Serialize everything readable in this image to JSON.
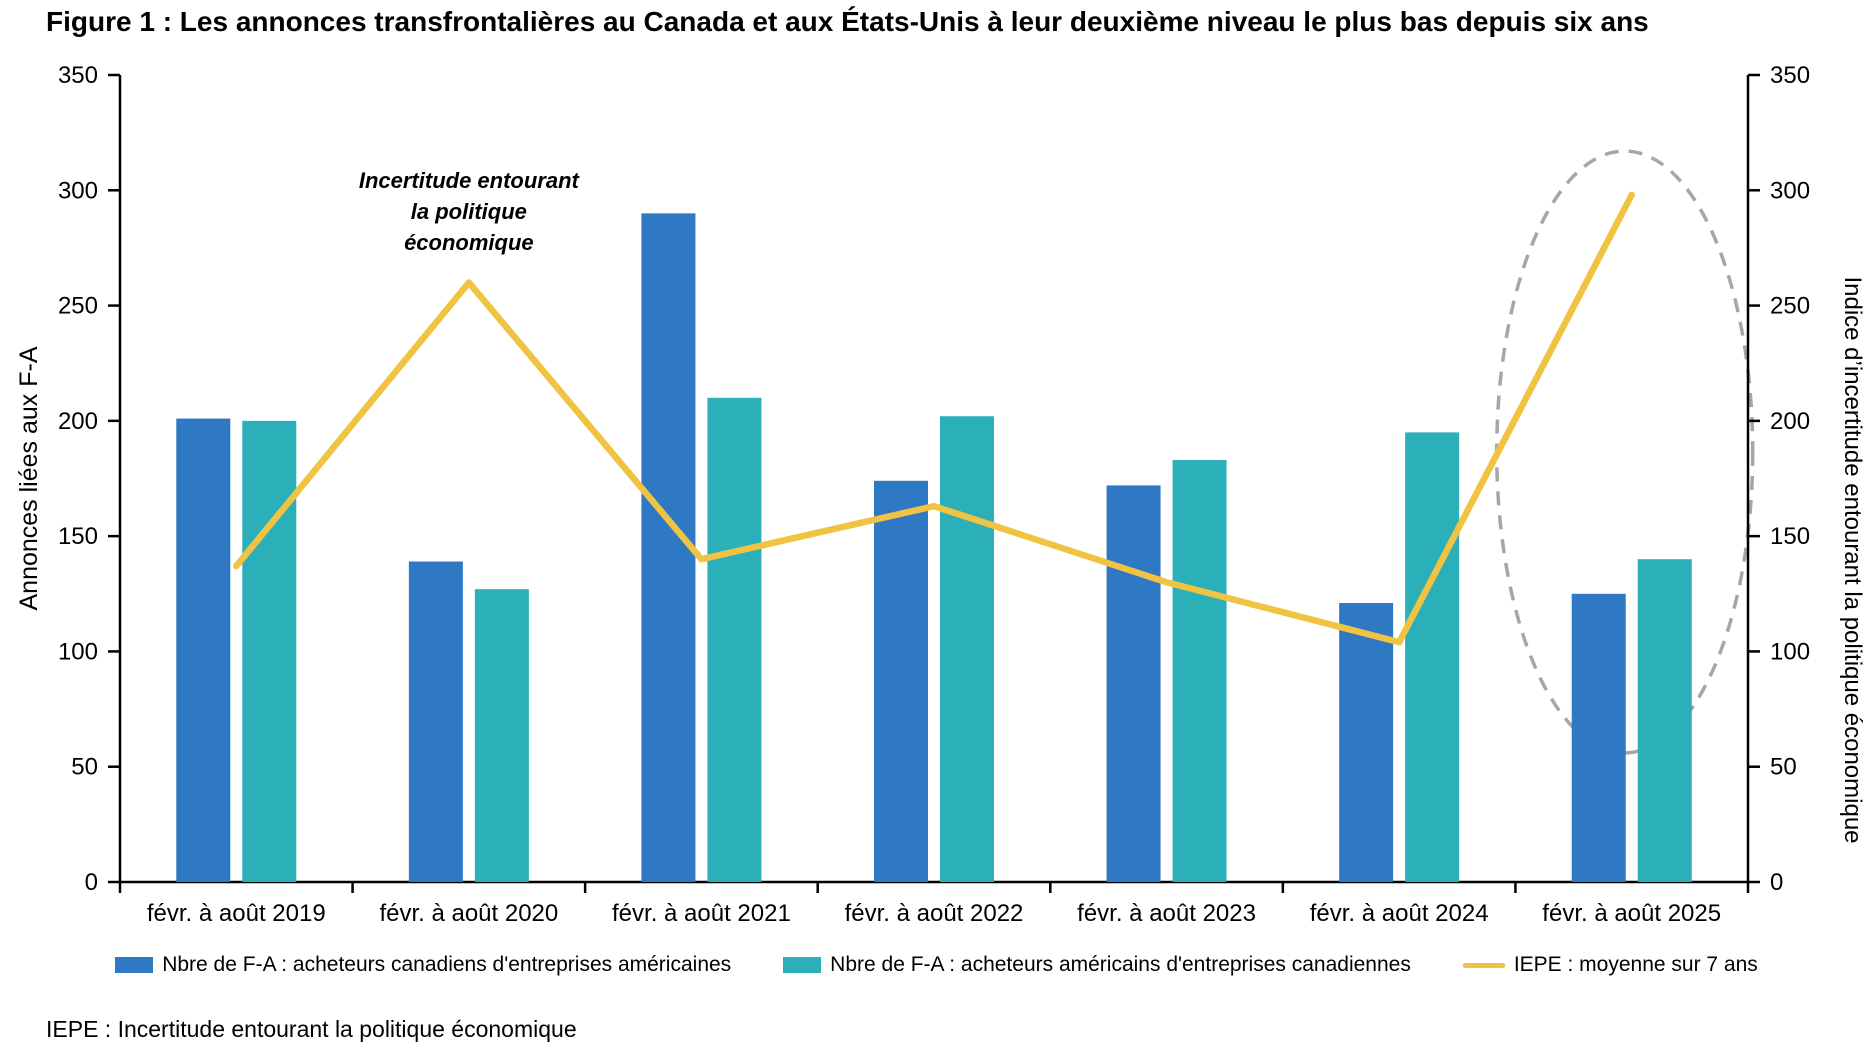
{
  "figure": {
    "title": "Figure 1 : Les annonces transfrontalières au Canada et aux États-Unis à leur deuxième niveau le plus bas depuis six ans",
    "footnote": "IEPE : Incertitude entourant la politique économique"
  },
  "chart_data": {
    "type": "bar",
    "subtype": "grouped-bars-with-line-overlay",
    "categories": [
      "févr. à août 2019",
      "févr. à août 2020",
      "févr. à août 2021",
      "févr. à août 2022",
      "févr. à août 2023",
      "févr. à août 2024",
      "févr. à août 2025"
    ],
    "series": [
      {
        "name": "Nbre de F-A : acheteurs canadiens d'entreprises américaines",
        "type": "bar",
        "axis": "left",
        "color": "#2F78C4",
        "values": [
          201,
          139,
          290,
          174,
          172,
          121,
          125
        ]
      },
      {
        "name": "Nbre de F-A : acheteurs américains d'entreprises canadiennes",
        "type": "bar",
        "axis": "left",
        "color": "#2BAFB8",
        "values": [
          200,
          127,
          210,
          202,
          183,
          195,
          140
        ]
      },
      {
        "name": "IEPE : moyenne sur 7 ans",
        "type": "line",
        "axis": "right",
        "color": "#F0C342",
        "values": [
          137,
          260,
          140,
          163,
          130,
          104,
          298
        ]
      }
    ],
    "left_axis": {
      "label": "Annonces liées aux F-A",
      "min": 0,
      "max": 350,
      "step": 50
    },
    "right_axis": {
      "label": "Indice d’incertitude entourant la politique économique",
      "min": 0,
      "max": 350,
      "step": 50
    },
    "annotation": {
      "lines": [
        "Incertitude entourant",
        "la politique",
        "économique"
      ],
      "category_index": 1,
      "points_to_value": 260
    },
    "highlight_ellipse": {
      "category_index": 6,
      "color": "#A6A6A6",
      "style": "dashed"
    },
    "grid": false,
    "legend_position": "bottom"
  }
}
